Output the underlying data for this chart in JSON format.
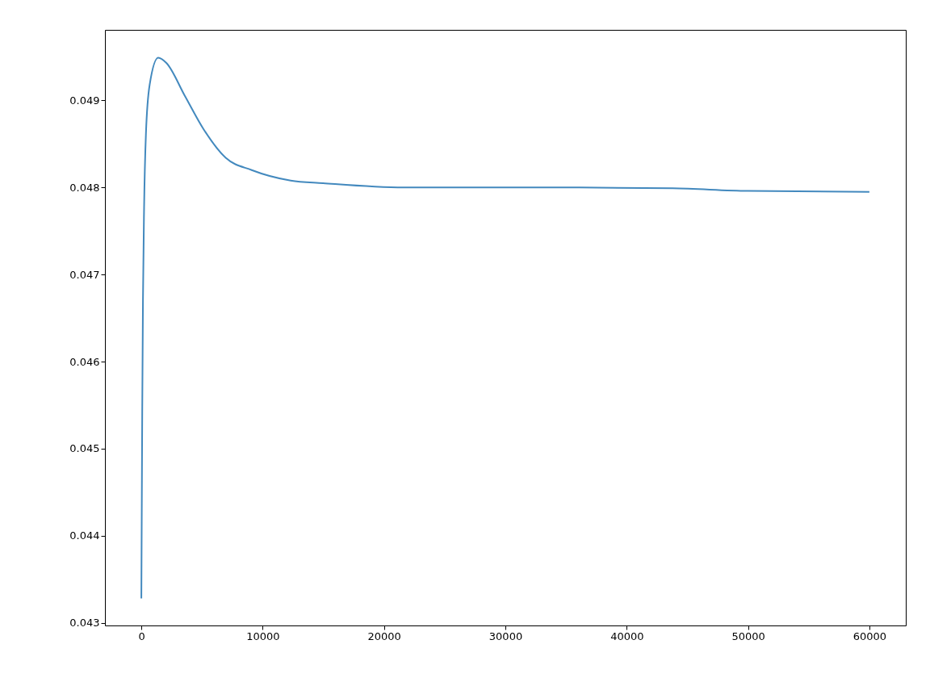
{
  "chart_data": {
    "type": "line",
    "x": [
      0,
      73,
      133,
      226,
      379,
      685,
      1390,
      2063,
      3593,
      5123,
      6953,
      9095,
      12309,
      14970,
      21623,
      28277,
      34930,
      43779,
      50000,
      60000
    ],
    "series": [
      {
        "color": "#4389be",
        "values": [
          0.04328,
          0.04543,
          0.04671,
          0.04777,
          0.04862,
          0.04918,
          0.04949,
          0.04943,
          0.04905,
          0.04867,
          0.04834,
          0.0482,
          0.04808,
          0.04805,
          0.048,
          0.048,
          0.048,
          0.04799,
          0.04796,
          0.04795
        ]
      }
    ],
    "xlim": [
      -3000,
      63000
    ],
    "xticks": [
      0,
      10000,
      20000,
      30000,
      40000,
      50000,
      60000
    ],
    "ylim": [
      0.04297,
      0.04981
    ],
    "yticks": [
      0.043,
      0.044,
      0.045,
      0.046,
      0.047,
      0.048,
      0.049
    ],
    "grid": false
  }
}
